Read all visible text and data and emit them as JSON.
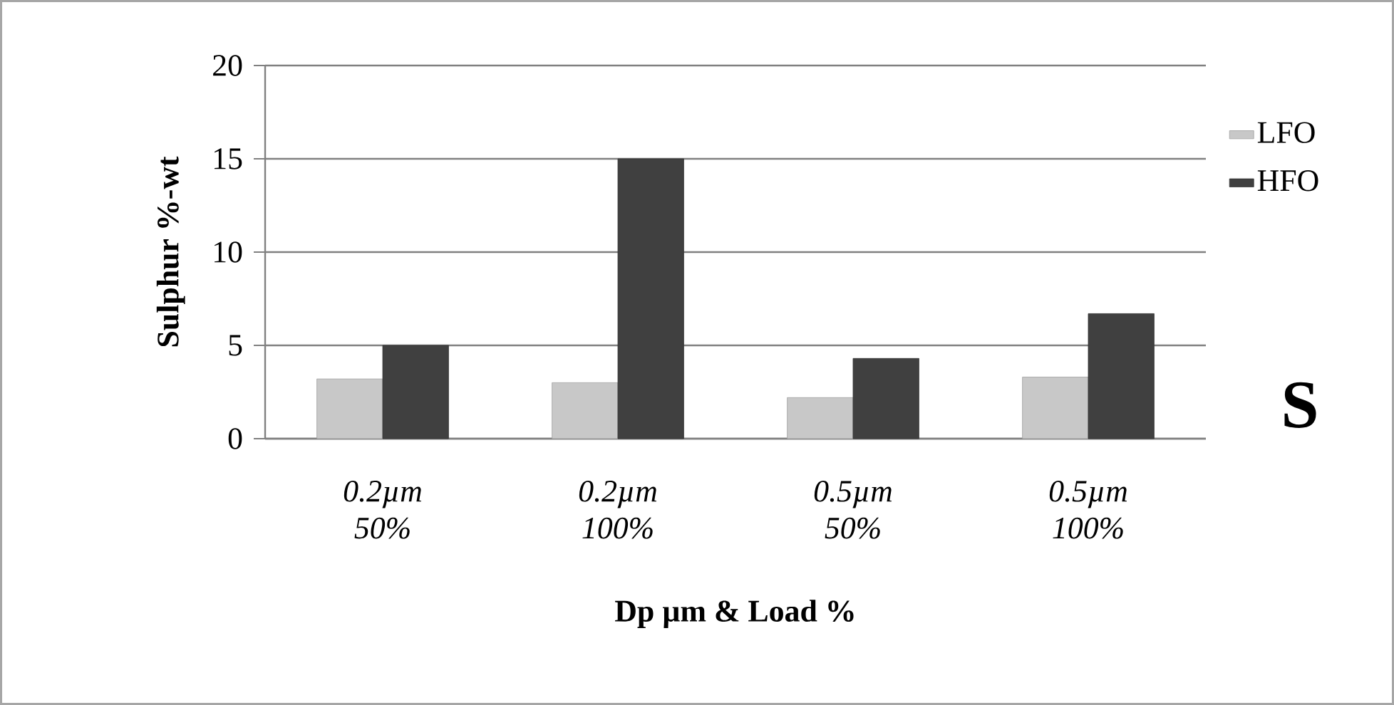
{
  "chart_data": {
    "type": "bar",
    "categories": [
      "0.2µm 50%",
      "0.2µm 100%",
      "0.5µm 50%",
      "0.5µm 100%"
    ],
    "series": [
      {
        "name": "LFO",
        "color": "#c8c8c8",
        "values": [
          3.2,
          3.0,
          2.2,
          3.3
        ]
      },
      {
        "name": "HFO",
        "color": "#404040",
        "values": [
          5.0,
          15.0,
          4.3,
          6.7
        ]
      }
    ],
    "ylim": [
      0,
      20
    ],
    "yticks": [
      0,
      5,
      10,
      15,
      20
    ],
    "grid": "y",
    "legend": "right",
    "ylabel": "Sulphur %-wt",
    "xlabel": "Dp µm & Load %",
    "annotations": [
      "S"
    ]
  }
}
